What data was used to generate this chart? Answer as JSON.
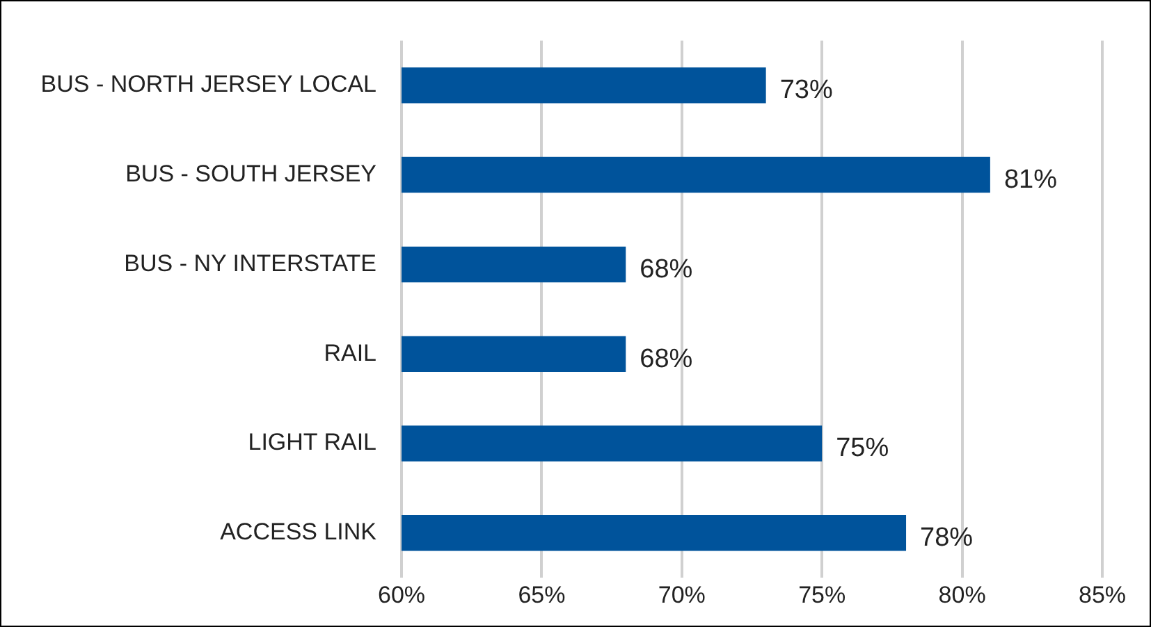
{
  "chart_data": {
    "type": "bar",
    "orientation": "horizontal",
    "categories": [
      "BUS - NORTH JERSEY LOCAL",
      "BUS - SOUTH JERSEY",
      "BUS - NY INTERSTATE",
      "RAIL",
      "LIGHT RAIL",
      "ACCESS LINK"
    ],
    "values": [
      73,
      81,
      68,
      68,
      75,
      78
    ],
    "value_labels": [
      "73%",
      "81%",
      "68%",
      "68%",
      "75%",
      "78%"
    ],
    "color": "#00539b",
    "xlim": [
      60,
      85
    ],
    "xticks": [
      {
        "value": 60,
        "label": "60%"
      },
      {
        "value": 65,
        "label": "65%"
      },
      {
        "value": 70,
        "label": "70%"
      },
      {
        "value": 75,
        "label": "75%"
      },
      {
        "value": 80,
        "label": "80%"
      },
      {
        "value": 85,
        "label": "85%"
      }
    ],
    "grid": "x",
    "legend": false
  }
}
